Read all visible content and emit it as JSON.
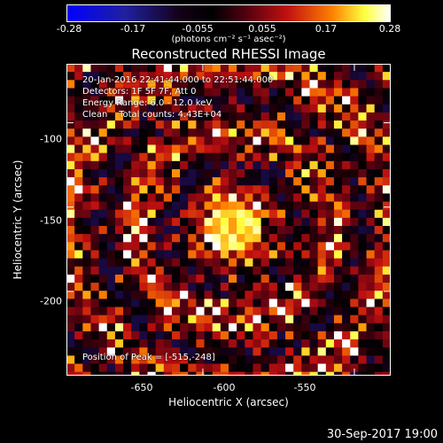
{
  "colorbar": {
    "ticks": [
      "-0.28",
      "-0.17",
      "-0.055",
      "0.055",
      "0.17",
      "0.28"
    ],
    "unit_label": "(photons cm⁻² s⁻¹ asec⁻²)"
  },
  "chart_data": {
    "type": "heatmap",
    "title": "Reconstructed RHESSI Image",
    "xlabel": "Heliocentric X (arcsec)",
    "ylabel": "Heliocentric Y (arcsec)",
    "xlim": [
      -695,
      -588
    ],
    "ylim": [
      -250,
      -65
    ],
    "x_ticks": [
      "-650",
      "-600",
      "-550"
    ],
    "y_ticks": [
      "-100",
      "-150",
      "-200"
    ],
    "x_tick_values": [
      -650,
      -600,
      -550
    ],
    "y_tick_values": [
      -100,
      -150,
      -200
    ],
    "clim": [
      -0.28,
      0.28
    ],
    "colormap": "RHESSI blue-black-red-yellow-white",
    "peak": {
      "x": -515,
      "y": -248,
      "value": 0.28
    },
    "info_lines": [
      "20-Jan-2016 22:41:44.000 to 22:51:44.000",
      "Detectors: 1F 5F 7F, Att 0",
      "Energy Range: 6.0 - 12.0 keV",
      "Clean    Total counts: 4.43E+04"
    ],
    "peak_label": "Position of Peak = [-515,-248]"
  },
  "footer": {
    "date": "30-Sep-2017 19:00"
  }
}
